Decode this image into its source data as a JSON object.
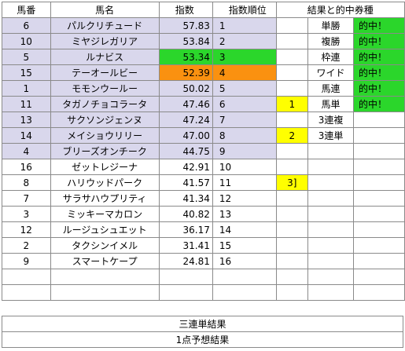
{
  "headers": {
    "umaban": "馬番",
    "bamei": "馬名",
    "shisu": "指数",
    "juni": "指数順位",
    "kekka": "結果と的中券種"
  },
  "rows": [
    {
      "umaban": "6",
      "bamei": "パルクリチュード",
      "shisu": "57.83",
      "juni": "1",
      "mark": "",
      "type": "単勝",
      "hit": "的中！"
    },
    {
      "umaban": "10",
      "bamei": "ミヤジレガリア",
      "shisu": "53.84",
      "juni": "2",
      "mark": "",
      "type": "複勝",
      "hit": "的中！"
    },
    {
      "umaban": "5",
      "bamei": "ルナビス",
      "shisu": "53.34",
      "juni": "3",
      "mark": "",
      "type": "枠連",
      "hit": "的中！"
    },
    {
      "umaban": "15",
      "bamei": "テーオールビー",
      "shisu": "52.39",
      "juni": "4",
      "mark": "",
      "type": "ワイド",
      "hit": "的中！"
    },
    {
      "umaban": "1",
      "bamei": "モモンウールー",
      "shisu": "50.02",
      "juni": "5",
      "mark": "",
      "type": "馬連",
      "hit": "的中！"
    },
    {
      "umaban": "11",
      "bamei": "タガノチョコラータ",
      "shisu": "47.46",
      "juni": "6",
      "mark": "1",
      "type": "馬単",
      "hit": "的中！"
    },
    {
      "umaban": "13",
      "bamei": "サクソンジェンヌ",
      "shisu": "47.24",
      "juni": "7",
      "mark": "",
      "type": "3連複",
      "hit": ""
    },
    {
      "umaban": "14",
      "bamei": "メイショウリリー",
      "shisu": "47.00",
      "juni": "8",
      "mark": "2",
      "type": "3連単",
      "hit": ""
    },
    {
      "umaban": "4",
      "bamei": "ブリーズオンチーク",
      "shisu": "44.75",
      "juni": "9",
      "mark": "",
      "type": "",
      "hit": ""
    },
    {
      "umaban": "16",
      "bamei": "ゼットレジーナ",
      "shisu": "42.91",
      "juni": "10",
      "mark": "",
      "type": "",
      "hit": ""
    },
    {
      "umaban": "8",
      "bamei": "ハリウッドパーク",
      "shisu": "41.57",
      "juni": "11",
      "mark": "3]",
      "type": "",
      "hit": ""
    },
    {
      "umaban": "7",
      "bamei": "サラサハウプリティ",
      "shisu": "41.34",
      "juni": "12",
      "mark": "",
      "type": "",
      "hit": ""
    },
    {
      "umaban": "3",
      "bamei": "ミッキーマカロン",
      "shisu": "40.82",
      "juni": "13",
      "mark": "",
      "type": "",
      "hit": ""
    },
    {
      "umaban": "12",
      "bamei": "ルージュシュエット",
      "shisu": "36.17",
      "juni": "14",
      "mark": "",
      "type": "",
      "hit": ""
    },
    {
      "umaban": "2",
      "bamei": "タクシンイメル",
      "shisu": "31.41",
      "juni": "15",
      "mark": "",
      "type": "",
      "hit": ""
    },
    {
      "umaban": "9",
      "bamei": "スマートケープ",
      "shisu": "24.81",
      "juni": "16",
      "mark": "",
      "type": "",
      "hit": ""
    }
  ],
  "footer": {
    "sanrentan": "三連単結果",
    "ippoint": "1点予想結果"
  },
  "colors": {
    "highlight_lavender": "#d9d7ec",
    "hit_green": "#2bd62b",
    "rank4_orange": "#fa9110",
    "mark_yellow": "#ffff00"
  }
}
